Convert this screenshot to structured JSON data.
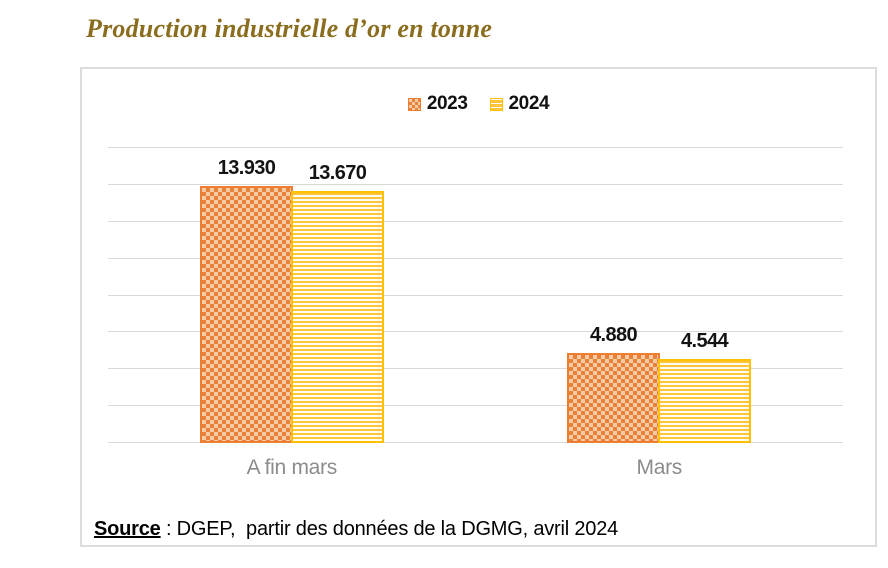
{
  "page": {
    "title": "Production industrielle d’or en tonne",
    "title_color": "#8a6d1f"
  },
  "chart_data": {
    "type": "bar",
    "title": "Production industrielle d’or en tonne",
    "categories": [
      "A fin mars",
      "Mars"
    ],
    "series": [
      {
        "name": "2023",
        "values": [
          13.93,
          4.88
        ],
        "labels": [
          "13.930",
          "4.880"
        ],
        "pattern": "dotted-diamond",
        "color": "#ed7d31",
        "fill_bg": "#f8cba5"
      },
      {
        "name": "2024",
        "values": [
          13.67,
          4.544
        ],
        "labels": [
          "13.670",
          "4.544"
        ],
        "pattern": "horizontal-stripes",
        "color": "#ffc000",
        "fill_bg": "#fffdf2"
      }
    ],
    "xlabel": "",
    "ylabel": "",
    "ylim": [
      0,
      16
    ],
    "grid_step": 2,
    "grid": true,
    "y_axis_labels_visible": false,
    "legend_position": "top-center",
    "gridline_color": "#d9d9d9",
    "axis_label_color": "#8c8c8c",
    "data_label_color": "#141414"
  },
  "source": {
    "label": "Source",
    "rest": " : DGEP,  partir des données de la DGMG, avril 2024"
  }
}
